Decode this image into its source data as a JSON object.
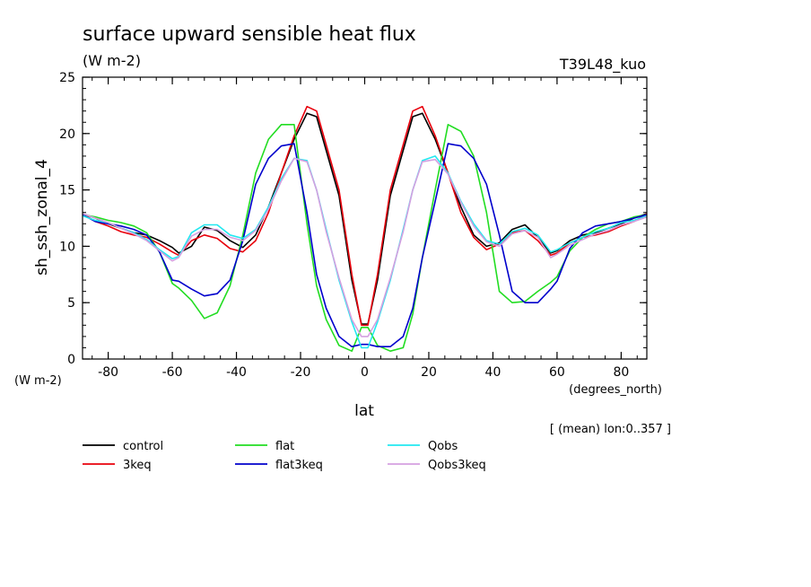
{
  "chart_data": {
    "type": "line",
    "title": "surface upward sensible heat flux",
    "subtitle": "(W m-2)",
    "model": "T39L48_kuo",
    "ylabel": "sh_ssh_zonal_4",
    "yunits": "(W m-2)",
    "xlabel": "lat",
    "xunits": "(degrees_north)",
    "note": "[ (mean) lon:0..357 ]",
    "xlim": [
      -88,
      88
    ],
    "ylim": [
      0,
      25
    ],
    "xticks": [
      -80,
      -60,
      -40,
      -20,
      0,
      20,
      40,
      60,
      80
    ],
    "yticks": [
      0,
      5,
      10,
      15,
      20,
      25
    ],
    "grid": false,
    "legend_position": "bottom",
    "x": [
      -88,
      -84,
      -80,
      -76,
      -72,
      -68,
      -64,
      -60,
      -58,
      -54,
      -50,
      -46,
      -42,
      -38,
      -34,
      -30,
      -26,
      -22,
      -18,
      -15,
      -12,
      -8,
      -4,
      -1,
      1,
      4,
      8,
      12,
      15,
      18,
      22,
      26,
      30,
      34,
      38,
      42,
      46,
      50,
      54,
      58,
      60,
      64,
      68,
      72,
      76,
      80,
      84,
      88
    ],
    "series": [
      {
        "name": "control",
        "color": "#000000",
        "values": [
          12.9,
          12.5,
          12.0,
          11.6,
          11.2,
          11.0,
          10.5,
          9.9,
          9.4,
          10.0,
          11.7,
          11.4,
          10.5,
          9.9,
          11.0,
          13.5,
          16.5,
          19.5,
          21.8,
          21.5,
          18.5,
          14.5,
          7.0,
          3.1,
          3.1,
          7.0,
          14.5,
          18.5,
          21.5,
          21.8,
          19.5,
          16.5,
          13.5,
          11.0,
          10.0,
          10.3,
          11.5,
          11.9,
          10.8,
          9.4,
          9.6,
          10.5,
          11.0,
          11.2,
          11.6,
          12.0,
          12.5,
          12.9
        ]
      },
      {
        "name": "3keq",
        "color": "#e8000b",
        "values": [
          12.9,
          12.2,
          11.8,
          11.3,
          11.0,
          10.8,
          10.2,
          9.5,
          9.2,
          10.5,
          11.0,
          10.7,
          9.8,
          9.5,
          10.5,
          13.0,
          16.5,
          19.8,
          22.4,
          22.0,
          19.0,
          15.0,
          7.5,
          3.0,
          3.0,
          7.5,
          15.0,
          19.0,
          22.0,
          22.4,
          19.8,
          16.5,
          13.0,
          10.8,
          9.7,
          10.2,
          11.2,
          11.4,
          10.5,
          9.2,
          9.4,
          10.3,
          10.8,
          11.0,
          11.3,
          11.8,
          12.2,
          12.9
        ]
      },
      {
        "name": "flat",
        "color": "#22dd22",
        "values": [
          12.8,
          12.6,
          12.3,
          12.1,
          11.8,
          11.2,
          9.5,
          6.7,
          6.3,
          5.2,
          3.6,
          4.1,
          6.5,
          11.0,
          16.5,
          19.5,
          20.8,
          20.8,
          12.0,
          6.5,
          3.5,
          1.2,
          0.7,
          2.8,
          2.8,
          1.2,
          0.7,
          1.0,
          4.0,
          9.0,
          15.0,
          20.8,
          20.2,
          18.0,
          13.0,
          6.0,
          5.0,
          5.1,
          6.0,
          6.8,
          7.3,
          9.6,
          10.8,
          11.5,
          12.0,
          12.2,
          12.6,
          12.8
        ]
      },
      {
        "name": "flat3keq",
        "color": "#0000cc",
        "values": [
          12.8,
          12.2,
          12.0,
          11.8,
          11.5,
          11.0,
          9.5,
          7.0,
          6.9,
          6.2,
          5.6,
          5.8,
          7.0,
          10.5,
          15.5,
          17.8,
          18.9,
          19.1,
          13.0,
          7.5,
          4.5,
          2.0,
          1.1,
          1.3,
          1.3,
          1.1,
          1.1,
          2.0,
          4.5,
          9.0,
          14.0,
          19.1,
          18.9,
          17.8,
          15.5,
          11.0,
          6.0,
          5.0,
          5.0,
          6.2,
          6.9,
          9.8,
          11.2,
          11.8,
          12.0,
          12.2,
          12.5,
          12.8
        ]
      },
      {
        "name": "Qobs",
        "color": "#22e8f0",
        "values": [
          12.7,
          12.3,
          12.1,
          11.6,
          11.2,
          10.6,
          9.7,
          8.9,
          9.1,
          11.2,
          11.9,
          11.9,
          11.0,
          10.7,
          11.5,
          13.5,
          16.0,
          17.8,
          17.6,
          15.0,
          11.5,
          7.0,
          3.3,
          1.0,
          1.0,
          3.3,
          7.0,
          11.5,
          15.0,
          17.6,
          18.0,
          16.5,
          14.0,
          12.0,
          10.5,
          10.2,
          11.3,
          11.6,
          11.0,
          9.5,
          9.7,
          10.3,
          10.8,
          11.3,
          11.6,
          12.1,
          12.3,
          12.7
        ]
      },
      {
        "name": "Qobs3keq",
        "color": "#d4a0e0",
        "values": [
          12.9,
          12.5,
          12.1,
          11.6,
          11.1,
          10.5,
          9.6,
          8.7,
          9.0,
          10.9,
          11.5,
          11.5,
          10.8,
          10.5,
          11.4,
          13.3,
          15.8,
          17.8,
          17.5,
          15.0,
          11.3,
          7.2,
          3.5,
          2.0,
          2.0,
          3.5,
          7.2,
          11.3,
          15.0,
          17.5,
          17.7,
          16.4,
          13.9,
          11.8,
          10.4,
          10.0,
          11.1,
          11.4,
          10.8,
          9.0,
          9.3,
          10.1,
          10.6,
          11.1,
          11.4,
          11.9,
          12.2,
          12.6
        ]
      }
    ]
  }
}
